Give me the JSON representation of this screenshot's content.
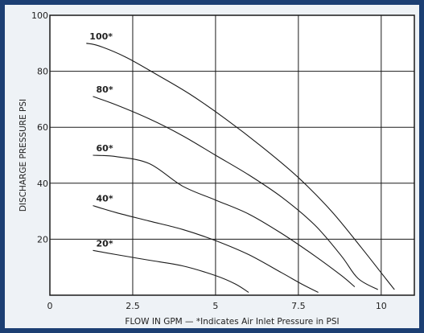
{
  "chart_data": {
    "type": "line",
    "title": "",
    "xlabel": "FLOW IN GPM — *Indicates Air Inlet Pressure in PSI",
    "ylabel": "DISCHARGE PRESSURE PSI",
    "xlim": [
      0,
      11
    ],
    "ylim": [
      0,
      100
    ],
    "x_ticks": [
      {
        "value": 0,
        "label": "0"
      },
      {
        "value": 2.5,
        "label": "2.5"
      },
      {
        "value": 5,
        "label": "5"
      },
      {
        "value": 7.5,
        "label": "7.5"
      },
      {
        "value": 10,
        "label": "10"
      }
    ],
    "y_ticks": [
      {
        "value": 20,
        "label": "20"
      },
      {
        "value": 40,
        "label": "40"
      },
      {
        "value": 60,
        "label": "60"
      },
      {
        "value": 80,
        "label": "80"
      },
      {
        "value": 100,
        "label": "100"
      }
    ],
    "grid": true,
    "series": [
      {
        "name": "100*",
        "points": [
          [
            1.1,
            90
          ],
          [
            1.5,
            89
          ],
          [
            2.3,
            85
          ],
          [
            3.2,
            79
          ],
          [
            4.2,
            72
          ],
          [
            5.3,
            63
          ],
          [
            6.4,
            53
          ],
          [
            7.5,
            42
          ],
          [
            8.5,
            30
          ],
          [
            9.4,
            17
          ],
          [
            10.0,
            8
          ],
          [
            10.4,
            2
          ]
        ]
      },
      {
        "name": "80*",
        "points": [
          [
            1.3,
            71
          ],
          [
            2.0,
            68
          ],
          [
            3.0,
            63
          ],
          [
            4.0,
            57
          ],
          [
            5.0,
            50
          ],
          [
            6.0,
            43
          ],
          [
            7.0,
            35
          ],
          [
            8.0,
            25
          ],
          [
            8.8,
            14
          ],
          [
            9.3,
            6
          ],
          [
            9.9,
            2
          ]
        ]
      },
      {
        "name": "60*",
        "points": [
          [
            1.3,
            50
          ],
          [
            2.0,
            49.5
          ],
          [
            3.0,
            47
          ],
          [
            4.0,
            39
          ],
          [
            5.0,
            34
          ],
          [
            6.0,
            29
          ],
          [
            7.0,
            22
          ],
          [
            8.0,
            14
          ],
          [
            8.8,
            7
          ],
          [
            9.2,
            3
          ]
        ]
      },
      {
        "name": "40*",
        "points": [
          [
            1.3,
            32
          ],
          [
            2.0,
            29.5
          ],
          [
            3.0,
            26.5
          ],
          [
            4.0,
            23.5
          ],
          [
            5.0,
            19.5
          ],
          [
            6.0,
            14.5
          ],
          [
            7.0,
            8
          ],
          [
            7.6,
            4
          ],
          [
            8.1,
            1
          ]
        ]
      },
      {
        "name": "20*",
        "points": [
          [
            1.3,
            16
          ],
          [
            2.0,
            14.5
          ],
          [
            3.0,
            12.5
          ],
          [
            4.0,
            10.5
          ],
          [
            5.0,
            7
          ],
          [
            5.6,
            4
          ],
          [
            6.0,
            1
          ]
        ]
      }
    ]
  }
}
